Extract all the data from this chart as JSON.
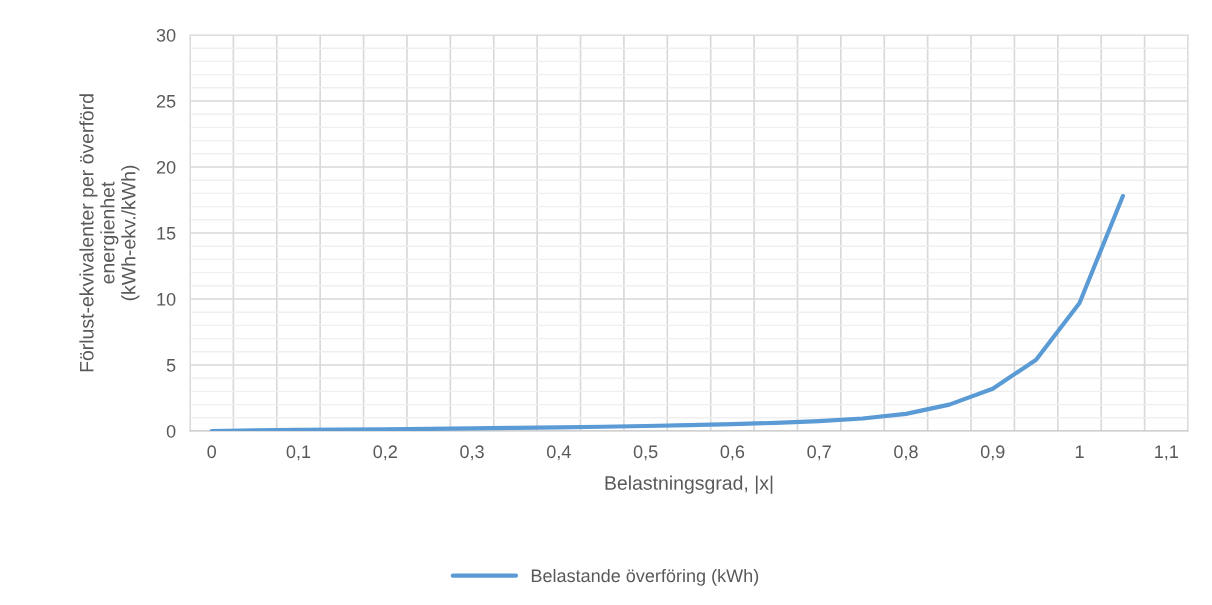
{
  "chart_data": {
    "type": "line",
    "xlabel": "Belastningsgrad, |x|",
    "ylabel": "Förlust-ekvivalenter per överförd\nenergienhet\n(kWh-ekv./kWh)",
    "categories": [
      "0",
      null,
      "0,1",
      null,
      "0,2",
      null,
      "0,3",
      null,
      "0,4",
      null,
      "0,5",
      null,
      "0,6",
      null,
      "0,7",
      null,
      "0,8",
      null,
      "0,9",
      null,
      "1",
      null,
      "1,1"
    ],
    "series": [
      {
        "name": "Belastande överföring (kWh)",
        "color": "#5b9bd5",
        "values": [
          0,
          0.05,
          0.08,
          0.1,
          0.13,
          0.16,
          0.2,
          0.24,
          0.28,
          0.32,
          0.38,
          0.45,
          0.52,
          0.62,
          0.75,
          0.95,
          1.3,
          2.0,
          3.2,
          5.4,
          9.7,
          17.8,
          null
        ]
      }
    ],
    "ylim": [
      0,
      30
    ],
    "yticks": [
      0,
      5,
      10,
      15,
      20,
      25,
      30
    ],
    "grid": true,
    "legend": "bottom",
    "marker": "none",
    "line_style": "solid"
  }
}
